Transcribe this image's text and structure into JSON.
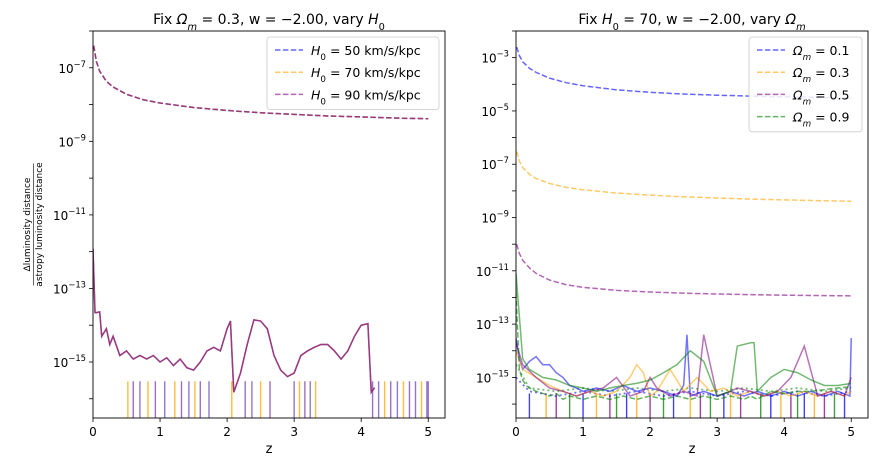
{
  "chart_data": [
    {
      "type": "line",
      "title": "Fix Ωm = 0.3, w = −2.00, vary H0",
      "xlabel": "z",
      "ylabel_numerator": "Δluminosity distance",
      "ylabel_denominator": "astropy luminosity distance",
      "yscale": "log",
      "xlim": [
        0,
        5.25
      ],
      "ylim": [
        3e-17,
        1e-06
      ],
      "xticks": [
        0,
        1,
        2,
        3,
        4,
        5
      ],
      "yticks": [
        {
          "exp": -7,
          "label": "10−7"
        },
        {
          "exp": -9,
          "label": "10−9"
        },
        {
          "exp": -11,
          "label": "10−11"
        },
        {
          "exp": -13,
          "label": "10−13"
        },
        {
          "exp": -15,
          "label": "10−15"
        }
      ],
      "legend_position": "top-right",
      "series": [
        {
          "name": "H0 = 50 km/s/kpc",
          "color": "#0000ff",
          "style": "dashed",
          "x": [
            0.01,
            0.05,
            0.1,
            0.2,
            0.3,
            0.5,
            0.75,
            1.0,
            1.5,
            2.0,
            2.5,
            3.0,
            3.5,
            4.0,
            4.5,
            5.0
          ],
          "y": [
            4e-07,
            1.5e-07,
            8e-08,
            4.3e-08,
            3e-08,
            1.9e-08,
            1.35e-08,
            1.1e-08,
            8.3e-09,
            6.9e-09,
            6e-09,
            5.4e-09,
            4.9e-09,
            4.6e-09,
            4.3e-09,
            4.1e-09
          ]
        },
        {
          "name": "H0 = 70 km/s/kpc",
          "color": "#ffa500",
          "style": "dashed",
          "x": [
            0.01,
            0.05,
            0.1,
            0.2,
            0.3,
            0.5,
            0.75,
            1.0,
            1.5,
            2.0,
            2.5,
            3.0,
            3.5,
            4.0,
            4.5,
            5.0
          ],
          "y": [
            4e-07,
            1.5e-07,
            8e-08,
            4.3e-08,
            3e-08,
            1.9e-08,
            1.35e-08,
            1.1e-08,
            8.3e-09,
            6.9e-09,
            6e-09,
            5.4e-09,
            4.9e-09,
            4.6e-09,
            4.3e-09,
            4.1e-09
          ]
        },
        {
          "name": "H0 = 90 km/s/kpc",
          "color": "#800080",
          "style": "dashed",
          "x": [
            0.01,
            0.05,
            0.1,
            0.2,
            0.3,
            0.5,
            0.75,
            1.0,
            1.5,
            2.0,
            2.5,
            3.0,
            3.5,
            4.0,
            4.5,
            5.0
          ],
          "y": [
            4e-07,
            1.5e-07,
            8e-08,
            4.3e-08,
            3e-08,
            1.9e-08,
            1.35e-08,
            1.1e-08,
            8.3e-09,
            6.9e-09,
            6e-09,
            5.4e-09,
            4.9e-09,
            4.6e-09,
            4.3e-09,
            4.1e-09
          ]
        }
      ],
      "residual_solid": {
        "color_blend": [
          "#0000ff",
          "#ffa500",
          "#800080"
        ],
        "x": [
          0.0,
          0.03,
          0.05,
          0.1,
          0.13,
          0.2,
          0.25,
          0.3,
          0.4,
          0.5,
          0.6,
          0.7,
          0.8,
          0.9,
          1.0,
          1.1,
          1.2,
          1.3,
          1.4,
          1.5,
          1.6,
          1.7,
          1.8,
          1.9,
          2.0,
          2.05,
          2.1,
          2.2,
          2.3,
          2.4,
          2.5,
          2.6,
          2.7,
          2.8,
          2.9,
          3.0,
          3.1,
          3.2,
          3.3,
          3.4,
          3.5,
          3.6,
          3.7,
          3.8,
          3.9,
          4.0,
          4.1,
          4.15,
          4.2
        ],
        "y": [
          1.2e-12,
          2.2e-14,
          2.2e-14,
          2.3e-14,
          5e-15,
          8e-15,
          3e-15,
          5e-15,
          1.5e-15,
          2e-15,
          1.2e-15,
          1.5e-15,
          1.2e-15,
          1.5e-15,
          1e-15,
          1.3e-15,
          8e-16,
          1.2e-15,
          7e-16,
          6e-16,
          1e-15,
          2e-15,
          2.5e-15,
          2e-15,
          8e-15,
          1.3e-14,
          1.5e-16,
          5e-16,
          3e-15,
          1.4e-14,
          1.3e-14,
          8e-15,
          1.5e-15,
          6e-16,
          4e-16,
          5e-16,
          1.5e-15,
          2e-15,
          2.5e-15,
          3e-15,
          3e-15,
          2e-15,
          1.2e-15,
          2e-15,
          5e-15,
          1e-14,
          1.1e-14,
          1.5e-16,
          2e-16
        ]
      },
      "residual_drops_x": [
        0.52,
        0.6,
        0.7,
        0.82,
        0.93,
        1.07,
        1.22,
        1.32,
        1.43,
        1.52,
        1.6,
        1.73,
        2.07,
        2.27,
        2.37,
        2.5,
        2.64,
        3.0,
        3.08,
        3.16,
        3.24,
        3.32,
        4.17,
        4.26,
        4.35,
        4.44,
        4.54,
        4.63,
        4.72,
        4.81,
        4.9,
        4.98,
        5.0
      ]
    },
    {
      "type": "line",
      "title": "Fix H0 = 70, w = −2.00, vary Ωm",
      "xlabel": "z",
      "yscale": "log",
      "xlim": [
        0,
        5.25
      ],
      "ylim": [
        3e-17,
        0.01
      ],
      "xticks": [
        0,
        1,
        2,
        3,
        4,
        5
      ],
      "yticks": [
        {
          "exp": -3,
          "label": "10−3"
        },
        {
          "exp": -5,
          "label": "10−5"
        },
        {
          "exp": -7,
          "label": "10−7"
        },
        {
          "exp": -9,
          "label": "10−9"
        },
        {
          "exp": -11,
          "label": "10−11"
        },
        {
          "exp": -13,
          "label": "10−13"
        },
        {
          "exp": -15,
          "label": "10−15"
        }
      ],
      "legend_position": "top-right",
      "series": [
        {
          "name": "Ωm = 0.1",
          "color": "#0000ff",
          "style": "dashed",
          "x": [
            0.01,
            0.05,
            0.1,
            0.2,
            0.3,
            0.5,
            0.75,
            1.0,
            1.5,
            2.0,
            2.5,
            3.0,
            3.5,
            4.0,
            4.5,
            5.0
          ],
          "y": [
            0.0025,
            0.0012,
            0.0007,
            0.0004,
            0.00028,
            0.00017,
            0.000115,
            8.8e-05,
            6.2e-05,
            5e-05,
            4.3e-05,
            3.9e-05,
            3.6e-05,
            3.4e-05,
            3.2e-05,
            3e-05
          ]
        },
        {
          "name": "Ωm = 0.3",
          "color": "#ffa500",
          "style": "dashed",
          "x": [
            0.01,
            0.05,
            0.1,
            0.2,
            0.3,
            0.5,
            0.75,
            1.0,
            1.5,
            2.0,
            2.5,
            3.0,
            3.5,
            4.0,
            4.5,
            5.0
          ],
          "y": [
            3e-07,
            1.3e-07,
            7.5e-08,
            4.2e-08,
            2.9e-08,
            1.9e-08,
            1.35e-08,
            1.1e-08,
            8.3e-09,
            6.9e-09,
            6e-09,
            5.4e-09,
            4.9e-09,
            4.6e-09,
            4.3e-09,
            4.1e-09
          ]
        },
        {
          "name": "Ωm = 0.5",
          "color": "#800080",
          "style": "dashed",
          "x": [
            0.01,
            0.05,
            0.1,
            0.2,
            0.3,
            0.5,
            0.75,
            1.0,
            1.5,
            2.0,
            2.5,
            3.0,
            3.5,
            4.0,
            4.5,
            5.0
          ],
          "y": [
            1e-10,
            4.5e-11,
            2.5e-11,
            1.3e-11,
            8e-12,
            4.5e-12,
            3e-12,
            2.4e-12,
            1.85e-12,
            1.6e-12,
            1.45e-12,
            1.35e-12,
            1.28e-12,
            1.22e-12,
            1.18e-12,
            1.15e-12
          ]
        },
        {
          "name": "Ωm = 0.9",
          "color": "#008000",
          "style": "dashed",
          "x": [
            0.0,
            0.05,
            0.1,
            0.15,
            0.2,
            0.3,
            0.4,
            0.5,
            0.6,
            0.7,
            0.8,
            1.0,
            1.2,
            1.4,
            1.6,
            1.8,
            2.0,
            2.2,
            2.4,
            2.6,
            2.8,
            3.0,
            3.2,
            3.4,
            3.5,
            3.6,
            3.8,
            4.0,
            4.2,
            4.4,
            4.6,
            4.8,
            5.0
          ],
          "y": [
            1.5e-12,
            2e-15,
            8e-16,
            5e-16,
            4e-16,
            3e-16,
            2.5e-16,
            2e-16,
            2.5e-16,
            1.5e-16,
            2e-16,
            1.5e-16,
            2e-16,
            1.5e-16,
            2e-16,
            1.5e-16,
            2e-16,
            1.5e-16,
            2e-16,
            1.5e-16,
            2e-16,
            1.5e-16,
            2e-16,
            1.5e-16,
            2e-16,
            1.5e-16,
            3e-16,
            2.5e-16,
            3e-16,
            3e-16,
            3.5e-16,
            4e-16,
            4.5e-16
          ]
        }
      ],
      "residual_solid": [
        {
          "color": "#0000ff",
          "x": [
            0.0,
            0.05,
            0.1,
            0.2,
            0.3,
            0.4,
            0.5,
            0.6,
            0.7,
            0.8,
            0.9,
            1.0,
            1.2,
            1.4,
            1.6,
            1.8,
            2.0,
            2.2,
            2.4,
            2.5,
            2.55,
            2.6,
            2.8,
            3.0,
            3.2,
            3.4,
            3.6,
            3.8,
            4.0,
            4.2,
            4.4,
            4.6,
            4.8,
            4.98,
            5.0
          ],
          "y": [
            3e-14,
            5e-15,
            2e-15,
            4e-15,
            6e-15,
            3e-15,
            3e-15,
            1.5e-15,
            1e-15,
            5e-16,
            4e-16,
            3e-16,
            4e-16,
            3e-16,
            5e-16,
            3e-16,
            4e-16,
            3e-16,
            2e-16,
            5e-16,
            4e-14,
            2e-16,
            3e-16,
            2e-16,
            3e-16,
            2e-16,
            3e-16,
            2e-16,
            3e-16,
            2e-16,
            3e-16,
            2e-16,
            3e-16,
            2e-16,
            3e-14
          ]
        },
        {
          "color": "#ffa500",
          "x": [
            0.0,
            0.1,
            0.3,
            0.5,
            0.7,
            0.9,
            1.1,
            1.3,
            1.5,
            1.7,
            1.8,
            1.9,
            2.0,
            2.1,
            2.3,
            2.5,
            2.7,
            2.9,
            3.1,
            3.3,
            3.5,
            3.7,
            3.9,
            4.1,
            4.3,
            4.5,
            4.7,
            4.9,
            5.0
          ],
          "y": [
            1e-14,
            2e-15,
            1e-15,
            5e-16,
            3e-16,
            2e-16,
            3e-16,
            2e-16,
            3e-16,
            1e-15,
            3e-15,
            1.5e-15,
            2e-16,
            3e-16,
            2e-15,
            3e-16,
            1e-15,
            3e-16,
            4e-16,
            2e-16,
            3e-16,
            2e-16,
            3e-16,
            2e-16,
            3e-16,
            2e-16,
            3e-16,
            2e-16,
            3e-16
          ]
        },
        {
          "color": "#800080",
          "x": [
            0.0,
            0.1,
            0.3,
            0.5,
            0.7,
            0.9,
            1.1,
            1.3,
            1.5,
            1.7,
            1.9,
            2.0,
            2.1,
            2.3,
            2.5,
            2.7,
            2.8,
            3.0,
            3.2,
            3.3,
            3.5,
            3.7,
            3.9,
            4.1,
            4.3,
            4.5,
            4.7,
            4.9,
            5.0
          ],
          "y": [
            2e-14,
            3e-15,
            1e-15,
            4e-16,
            3e-16,
            2e-16,
            3e-16,
            4e-16,
            1e-15,
            2e-16,
            3e-16,
            1e-15,
            4e-16,
            2e-16,
            3e-16,
            2e-16,
            4e-14,
            2e-16,
            3e-16,
            4e-16,
            3e-16,
            2e-16,
            3e-16,
            1e-15,
            1.5e-14,
            2e-16,
            3e-16,
            2e-16,
            1e-15
          ]
        },
        {
          "color": "#008000",
          "x": [
            0.0,
            0.1,
            0.2,
            0.4,
            0.6,
            0.8,
            1.0,
            1.2,
            1.4,
            1.6,
            1.8,
            2.0,
            2.2,
            2.4,
            2.6,
            2.8,
            3.0,
            3.2,
            3.3,
            3.5,
            3.55,
            3.6,
            3.8,
            4.0,
            4.2,
            4.4,
            4.6,
            4.8,
            5.0
          ],
          "y": [
            8e-12,
            5e-15,
            2e-15,
            1e-15,
            8e-16,
            5e-16,
            4e-16,
            3e-16,
            4e-16,
            5e-16,
            6e-16,
            8e-16,
            1.5e-15,
            3e-15,
            1e-14,
            4e-15,
            2e-16,
            3e-16,
            1.5e-14,
            2e-14,
            2e-14,
            3e-16,
            1e-15,
            2e-15,
            1.5e-15,
            8e-16,
            5e-16,
            5e-16,
            6e-16
          ]
        }
      ],
      "residual_dotted": [
        {
          "color": "#0000ff",
          "x": [
            0.0,
            0.2,
            0.6,
            1.0,
            1.4,
            1.8,
            2.2,
            2.6,
            3.0,
            3.4,
            3.8,
            4.2,
            4.6,
            5.0
          ],
          "y": [
            1e-15,
            3e-16,
            2e-16,
            3e-16,
            2e-16,
            3e-16,
            2e-16,
            3e-16,
            2e-16,
            3e-16,
            2e-16,
            3e-16,
            2e-16,
            3e-16
          ]
        },
        {
          "color": "#008000",
          "x": [
            0.0,
            0.2,
            0.6,
            1.0,
            1.4,
            1.8,
            2.2,
            2.6,
            3.0,
            3.4,
            3.8,
            4.2,
            4.6,
            5.0
          ],
          "y": [
            3e-15,
            4e-16,
            3e-16,
            4e-16,
            3e-16,
            4e-16,
            3e-16,
            4e-16,
            3e-16,
            4e-16,
            3e-16,
            4e-16,
            3e-16,
            4e-16
          ]
        }
      ],
      "residual_drops_x": [
        0.2,
        0.45,
        0.6,
        0.8,
        1.0,
        1.2,
        1.4,
        1.5,
        1.65,
        1.8,
        2.0,
        2.2,
        2.35,
        2.6,
        2.75,
        2.9,
        3.1,
        3.2,
        3.35,
        3.65,
        3.8,
        3.95,
        4.1,
        4.2,
        4.3,
        4.45,
        4.6,
        4.75,
        4.9
      ]
    }
  ]
}
